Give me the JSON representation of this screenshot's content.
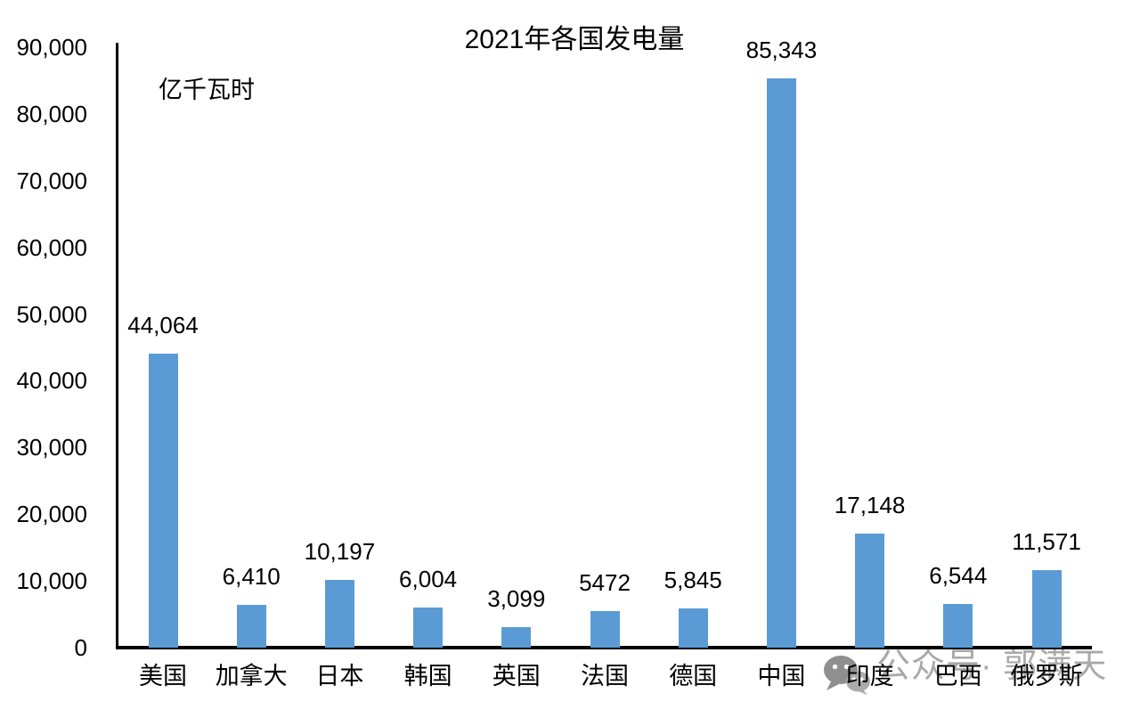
{
  "chart_data": {
    "type": "bar",
    "title": "2021年各国发电量",
    "unit_label": "亿千瓦时",
    "ylabel": "亿千瓦时",
    "xlabel": "",
    "categories": [
      "美国",
      "加拿大",
      "日本",
      "韩国",
      "英国",
      "法国",
      "德国",
      "中国",
      "印度",
      "巴西",
      "俄罗斯"
    ],
    "values": [
      44064,
      6410,
      10197,
      6004,
      3099,
      5472,
      5845,
      85343,
      17148,
      6544,
      11571
    ],
    "value_labels": [
      "44,064",
      "6,410",
      "10,197",
      "6,004",
      "3,099",
      "5472",
      "5,845",
      "85,343",
      "17,148",
      "6,544",
      "11,571"
    ],
    "ylim": [
      0,
      90000
    ],
    "ytick_step": 10000,
    "ytick_labels": [
      "0",
      "10,000",
      "20,000",
      "30,000",
      "40,000",
      "50,000",
      "60,000",
      "70,000",
      "80,000",
      "90,000"
    ],
    "bar_color": "#5B9BD5",
    "axis_color": "#000000",
    "text_color": "#000000",
    "grid": false,
    "legend": null
  },
  "watermark": {
    "icon": "wechat-icon",
    "text": "公众号· 郭满天",
    "color": "#A9A9A9",
    "icon_color_dark": "#8F8F8F",
    "icon_color_light": "#ABABAB"
  }
}
